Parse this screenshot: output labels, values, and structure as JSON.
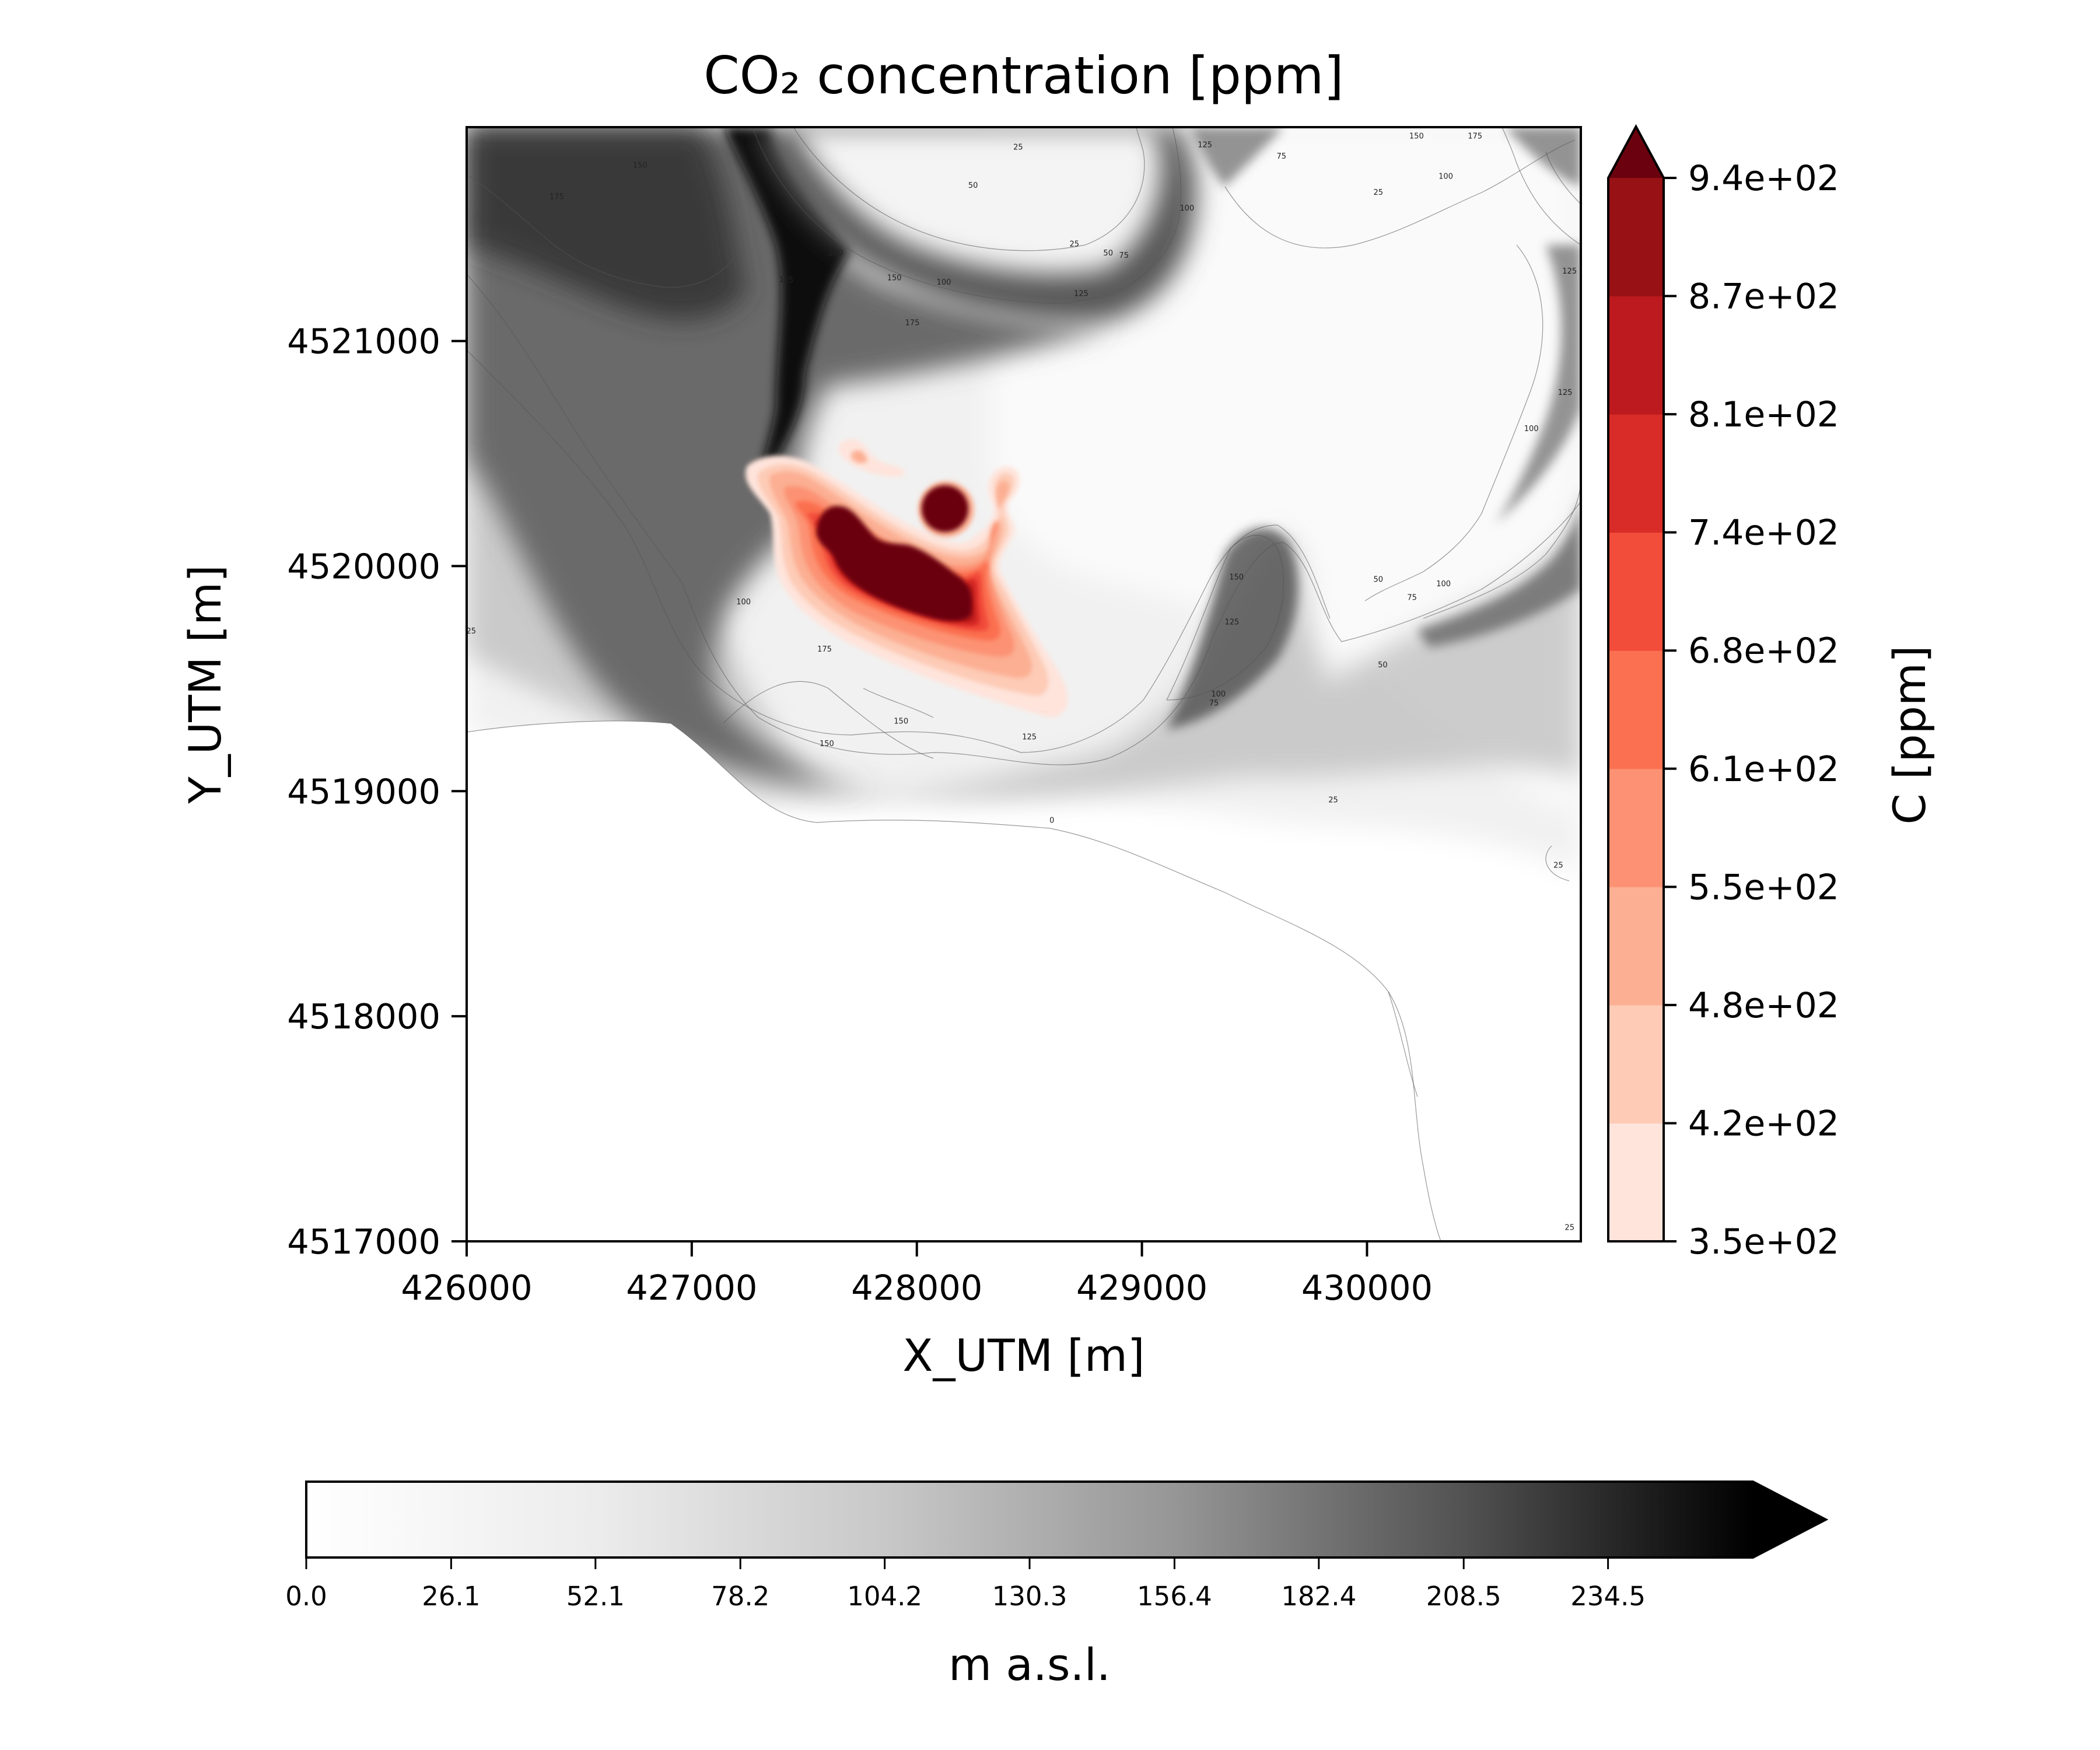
{
  "chart_data": {
    "type": "heatmap",
    "title": "CO₂ concentration [ppm]",
    "xlabel": "X_UTM [m]",
    "ylabel": "Y_UTM [m]",
    "xlim": [
      426000,
      430950
    ],
    "ylim": [
      4517000,
      4521950
    ],
    "x_ticks": [
      426000,
      427000,
      428000,
      429000,
      430000
    ],
    "x_tick_labels": [
      "426000",
      "427000",
      "428000",
      "429000",
      "430000"
    ],
    "y_ticks": [
      4517000,
      4518000,
      4519000,
      4520000,
      4521000
    ],
    "y_tick_labels": [
      "4517000",
      "4518000",
      "4519000",
      "4520000",
      "4521000"
    ],
    "concentration_colorbar": {
      "label": "C [ppm]",
      "levels": [
        350,
        420,
        480,
        550,
        610,
        680,
        740,
        810,
        870,
        940
      ],
      "tick_labels": [
        "3.5e+02",
        "4.2e+02",
        "4.8e+02",
        "5.5e+02",
        "6.1e+02",
        "6.8e+02",
        "7.4e+02",
        "8.1e+02",
        "8.7e+02",
        "9.4e+02"
      ],
      "colors": [
        "#fee4db",
        "#fdcbb6",
        "#fcaf93",
        "#fc9273",
        "#fb7050",
        "#f24c3a",
        "#d92b27",
        "#bc1a1e",
        "#971115",
        "#6b010e"
      ],
      "extend": "max"
    },
    "elevation_colorbar": {
      "label": "m a.s.l.",
      "tick_values": [
        0.0,
        26.1,
        52.1,
        78.2,
        104.2,
        130.3,
        156.4,
        182.4,
        208.5,
        234.5
      ],
      "tick_labels": [
        "0.0",
        "26.1",
        "52.1",
        "78.2",
        "104.2",
        "130.3",
        "156.4",
        "182.4",
        "208.5",
        "234.5"
      ],
      "range": [
        0,
        260.6
      ],
      "extend": "max",
      "colormap": "greys"
    },
    "elevation_contours": [
      {
        "level": "0",
        "x": 428600,
        "y": 4518860
      },
      {
        "level": "25",
        "x": 428700,
        "y": 4521420
      },
      {
        "level": "25",
        "x": 430050,
        "y": 4521650
      },
      {
        "level": "25",
        "x": 429850,
        "y": 4518950
      },
      {
        "level": "25",
        "x": 430850,
        "y": 4518660
      },
      {
        "level": "25",
        "x": 430900,
        "y": 4517050
      },
      {
        "level": "25",
        "x": 426020,
        "y": 4519700
      },
      {
        "level": "25",
        "x": 428450,
        "y": 4521850
      },
      {
        "level": "50",
        "x": 428250,
        "y": 4521680
      },
      {
        "level": "50",
        "x": 428850,
        "y": 4521380
      },
      {
        "level": "50",
        "x": 430050,
        "y": 4519930
      },
      {
        "level": "50",
        "x": 430070,
        "y": 4519550
      },
      {
        "level": "75",
        "x": 428920,
        "y": 4521370
      },
      {
        "level": "75",
        "x": 429620,
        "y": 4521810
      },
      {
        "level": "75",
        "x": 430200,
        "y": 4519850
      },
      {
        "level": "75",
        "x": 429320,
        "y": 4519380
      },
      {
        "level": "100",
        "x": 428120,
        "y": 4521250
      },
      {
        "level": "100",
        "x": 429200,
        "y": 4521580
      },
      {
        "level": "100",
        "x": 429340,
        "y": 4519420
      },
      {
        "level": "100",
        "x": 430340,
        "y": 4519910
      },
      {
        "level": "100",
        "x": 430730,
        "y": 4520600
      },
      {
        "level": "100",
        "x": 430350,
        "y": 4521720
      },
      {
        "level": "100",
        "x": 427230,
        "y": 4519830
      },
      {
        "level": "125",
        "x": 428730,
        "y": 4521200
      },
      {
        "level": "125",
        "x": 429280,
        "y": 4521860
      },
      {
        "level": "125",
        "x": 428580,
        "y": 4519350
      },
      {
        "level": "125",
        "x": 428500,
        "y": 4519230
      },
      {
        "level": "125",
        "x": 429400,
        "y": 4519740
      },
      {
        "level": "125",
        "x": 430900,
        "y": 4521300
      },
      {
        "level": "125",
        "x": 430880,
        "y": 4520760
      },
      {
        "level": "125",
        "x": 427420,
        "y": 4521260
      },
      {
        "level": "150",
        "x": 426770,
        "y": 4521770
      },
      {
        "level": "150",
        "x": 427900,
        "y": 4521270
      },
      {
        "level": "150",
        "x": 429420,
        "y": 4519940
      },
      {
        "level": "150",
        "x": 430220,
        "y": 4521900
      },
      {
        "level": "150",
        "x": 427600,
        "y": 4519200
      },
      {
        "level": "150",
        "x": 427930,
        "y": 4519300
      },
      {
        "level": "175",
        "x": 426400,
        "y": 4521630
      },
      {
        "level": "175",
        "x": 427980,
        "y": 4521070
      },
      {
        "level": "175",
        "x": 430480,
        "y": 4521900
      },
      {
        "level": "175",
        "x": 427590,
        "y": 4519620
      },
      {
        "level": "200",
        "x": 427640,
        "y": 4521380
      }
    ]
  }
}
